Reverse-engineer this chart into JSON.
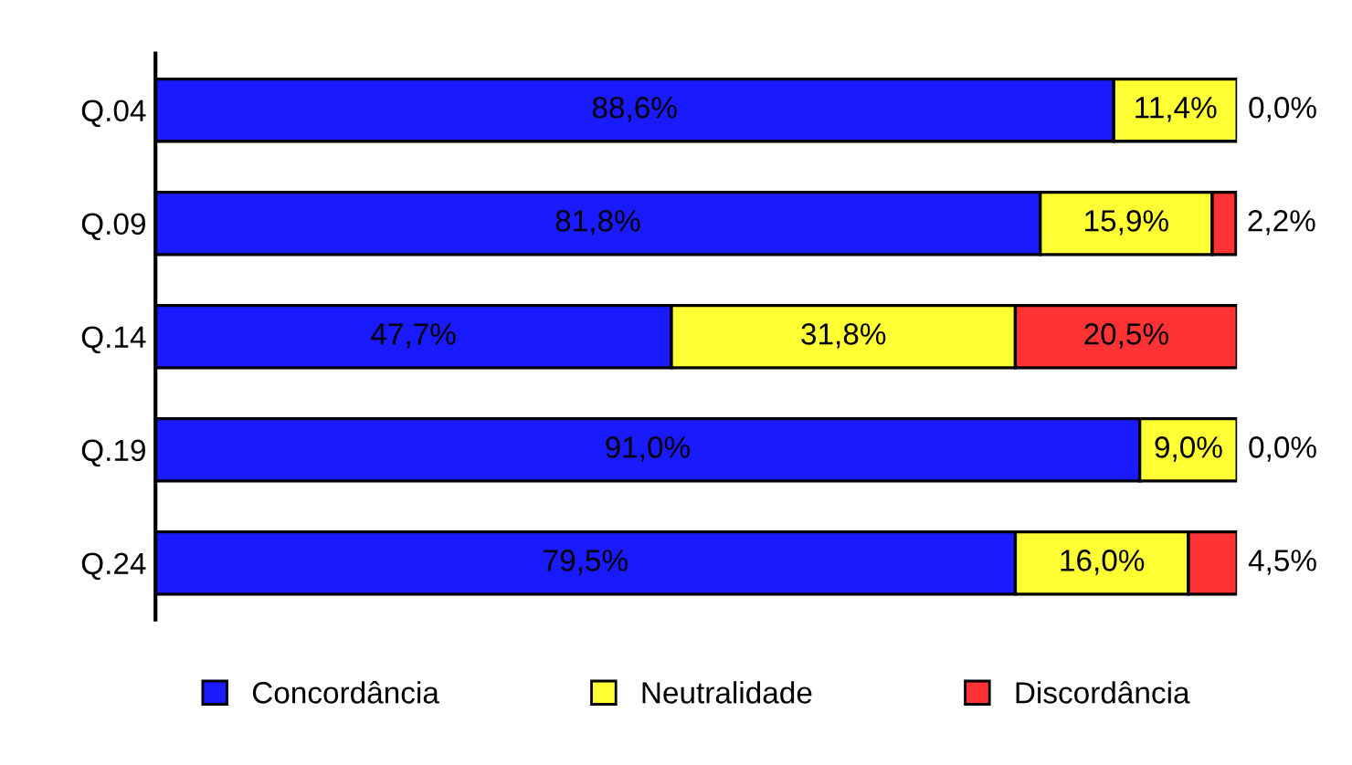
{
  "chart_data": {
    "type": "bar",
    "orientation": "horizontal",
    "stacked": true,
    "legend": "bottom",
    "grid": false,
    "categories": [
      "Q.04",
      "Q.09",
      "Q.14",
      "Q.19",
      "Q.24"
    ],
    "series": [
      {
        "name": "Concordância",
        "color": "#1a1aff",
        "values": [
          88.6,
          81.8,
          47.7,
          91.0,
          79.5
        ],
        "value_labels": [
          "88,6%",
          "81,8%",
          "47,7%",
          "91,0%",
          "79,5%"
        ]
      },
      {
        "name": "Neutralidade",
        "color": "#ffff33",
        "values": [
          11.4,
          15.9,
          31.8,
          9.0,
          16.0
        ],
        "value_labels": [
          "11,4%",
          "15,9%",
          "31,8%",
          "9,0%",
          "16,0%"
        ]
      },
      {
        "name": "Discordância",
        "color": "#ff3333",
        "values": [
          0.0,
          2.2,
          20.5,
          0.0,
          4.5
        ],
        "value_labels": [
          "0,0%",
          "2,2%",
          "20,5%",
          "0,0%",
          "4,5%"
        ]
      }
    ]
  }
}
